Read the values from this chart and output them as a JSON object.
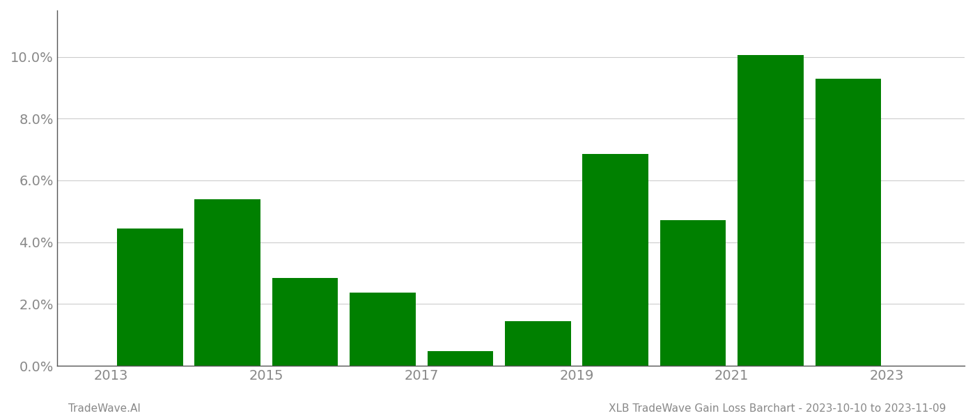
{
  "years": [
    2013,
    2014,
    2015,
    2016,
    2017,
    2018,
    2019,
    2020,
    2021,
    2022
  ],
  "bar_positions": [
    2013.5,
    2014.5,
    2015.5,
    2016.5,
    2017.5,
    2018.5,
    2019.5,
    2020.5,
    2021.5,
    2022.5
  ],
  "values": [
    0.0445,
    0.054,
    0.0285,
    0.0238,
    0.0048,
    0.0145,
    0.0685,
    0.0472,
    0.1005,
    0.093
  ],
  "bar_color": "#008000",
  "background_color": "#ffffff",
  "grid_color": "#cccccc",
  "xlabel": "",
  "ylabel": "",
  "title": "",
  "footer_left": "TradeWave.AI",
  "footer_right": "XLB TradeWave Gain Loss Barchart - 2023-10-10 to 2023-11-09",
  "ylim": [
    0,
    0.115
  ],
  "yticks": [
    0.0,
    0.02,
    0.04,
    0.06,
    0.08,
    0.1
  ],
  "xticks": [
    2013,
    2015,
    2017,
    2019,
    2021,
    2023
  ],
  "xlim": [
    2012.3,
    2024.0
  ],
  "spine_color": "#555555",
  "tick_label_color": "#888888",
  "footer_color": "#888888",
  "bar_width": 0.85,
  "tick_label_size": 14,
  "footer_fontsize": 11
}
